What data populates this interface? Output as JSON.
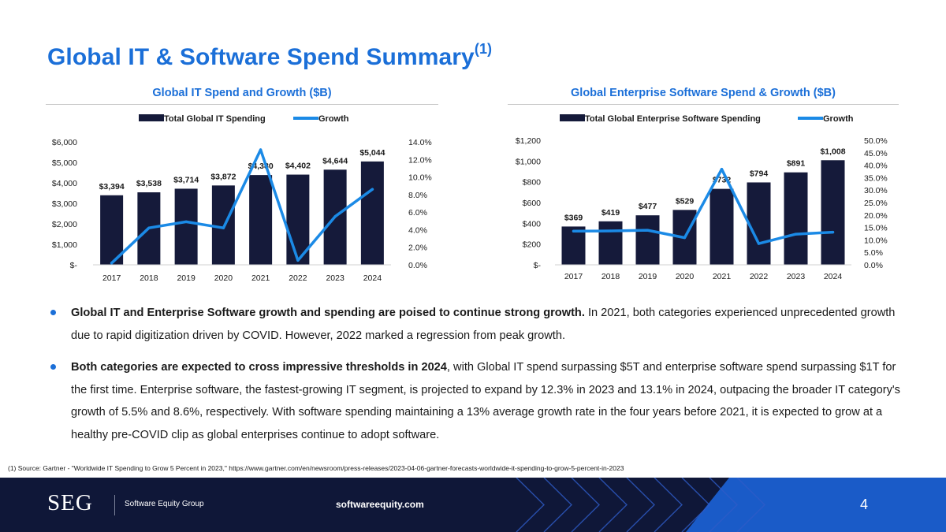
{
  "slide": {
    "title": "Global IT & Software Spend Summary",
    "title_sup": "(1)",
    "bullets": [
      {
        "bold": "Global IT and Enterprise Software growth and spending are poised to continue strong growth.",
        "text": " In 2021, both categories experienced unprecedented growth due to rapid digitization driven by COVID. However, 2022 marked a regression from peak growth."
      },
      {
        "bold": "Both categories are expected to cross impressive thresholds in 2024",
        "text": ", with Global IT spend surpassing $5T and enterprise software spend surpassing $1T for the first time. Enterprise software, the fastest-growing IT segment, is projected to expand by 12.3% in 2023 and 13.1% in 2024, outpacing the broader IT category's growth of 5.5% and 8.6%, respectively. With software spending maintaining a 13% average growth rate in the four years before 2021, it is expected to grow at a healthy pre-COVID clip as global enterprises continue to adopt software."
      }
    ],
    "footnote": "(1)  Source: Gartner - \"Worldwide IT Spending to Grow 5 Percent in 2023,\" https://www.gartner.com/en/newsroom/press-releases/2023-04-06-gartner-forecasts-worldwide-it-spending-to-grow-5-percent-in-2023"
  },
  "footer": {
    "logo": "SEG",
    "company": "Software Equity Group",
    "website": "softwareequity.com",
    "page_number": "4"
  },
  "colors": {
    "accent": "#1b6fd8",
    "bar": "#151a3a",
    "line": "#1b8ae6",
    "footer_bg": "#0f1738"
  },
  "chart_data": [
    {
      "type": "bar",
      "title": "Global IT Spend and Growth ($B)",
      "categories": [
        "2017",
        "2018",
        "2019",
        "2020",
        "2021",
        "2022",
        "2023",
        "2024"
      ],
      "series": [
        {
          "name": "Total Global IT Spending",
          "type": "bar",
          "axis": "left",
          "values": [
            3394,
            3538,
            3714,
            3872,
            4380,
            4402,
            4644,
            5044
          ],
          "labels": [
            "$3,394",
            "$3,538",
            "$3,714",
            "$3,872",
            "$4,380",
            "$4,402",
            "$4,644",
            "$5,044"
          ]
        },
        {
          "name": "Growth",
          "type": "line",
          "axis": "right",
          "values": [
            0.2,
            4.2,
            4.9,
            4.2,
            13.1,
            0.5,
            5.5,
            8.6
          ]
        }
      ],
      "ylim_left": [
        0,
        6000
      ],
      "ylim_right": [
        0,
        14
      ],
      "yticks_left": [
        "$-",
        "$1,000",
        "$2,000",
        "$3,000",
        "$4,000",
        "$5,000",
        "$6,000"
      ],
      "yticks_right": [
        "0.0%",
        "2.0%",
        "4.0%",
        "6.0%",
        "8.0%",
        "10.0%",
        "12.0%",
        "14.0%"
      ],
      "legend": "top",
      "grid": false
    },
    {
      "type": "bar",
      "title": "Global Enterprise Software Spend & Growth ($B)",
      "categories": [
        "2017",
        "2018",
        "2019",
        "2020",
        "2021",
        "2022",
        "2023",
        "2024"
      ],
      "series": [
        {
          "name": "Total Global Enterprise Software Spending",
          "type": "bar",
          "axis": "left",
          "values": [
            369,
            419,
            477,
            529,
            732,
            794,
            891,
            1008
          ],
          "labels": [
            "$369",
            "$419",
            "$477",
            "$529",
            "$732",
            "$794",
            "$891",
            "$1,008"
          ]
        },
        {
          "name": "Growth",
          "type": "line",
          "axis": "right",
          "values": [
            13.5,
            13.6,
            13.9,
            10.9,
            38.4,
            8.5,
            12.3,
            13.1
          ]
        }
      ],
      "ylim_left": [
        0,
        1200
      ],
      "ylim_right": [
        0,
        50
      ],
      "yticks_left": [
        "$-",
        "$200",
        "$400",
        "$600",
        "$800",
        "$1,000",
        "$1,200"
      ],
      "yticks_right": [
        "0.0%",
        "5.0%",
        "10.0%",
        "15.0%",
        "20.0%",
        "25.0%",
        "30.0%",
        "35.0%",
        "40.0%",
        "45.0%",
        "50.0%"
      ],
      "legend": "top",
      "grid": false
    }
  ]
}
